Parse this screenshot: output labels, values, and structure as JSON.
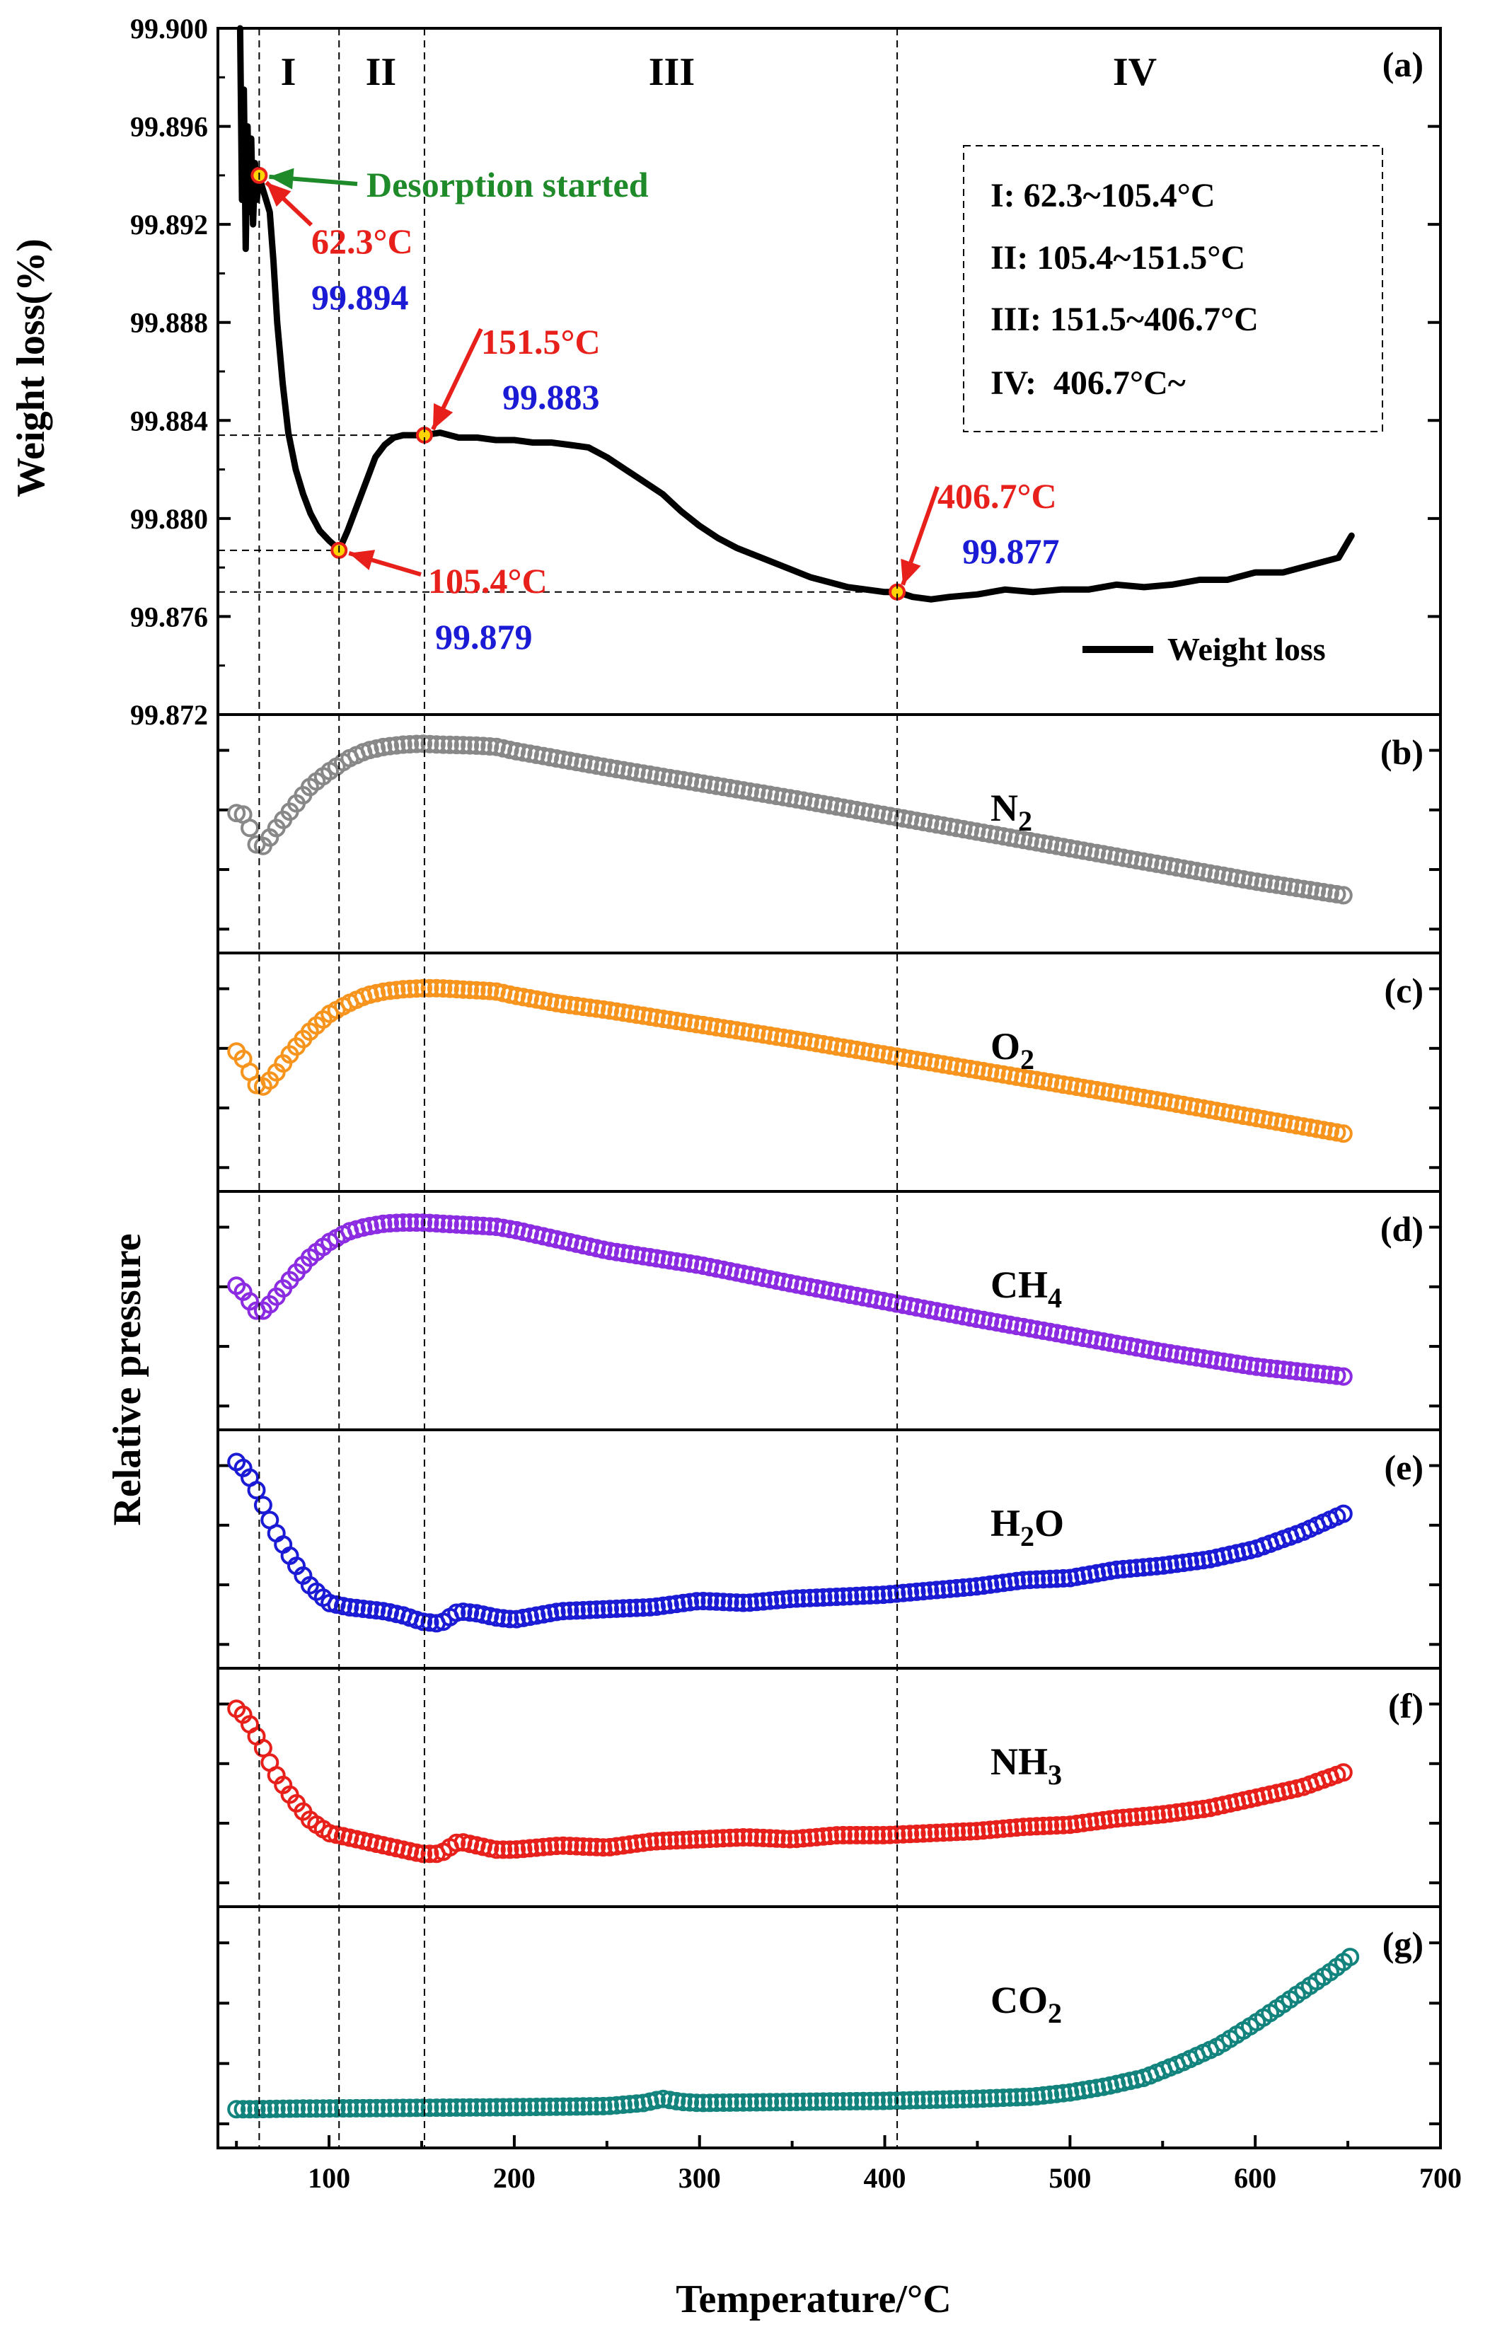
{
  "chart_data": {
    "type": "line",
    "title": "",
    "xlabel": "Temperature/°C",
    "xlim": [
      40,
      700
    ],
    "x_ticks": [
      100,
      200,
      300,
      400,
      500,
      600,
      700
    ],
    "shared_ylabel": "Relative pressure",
    "region_boundaries": [
      62.3,
      105.4,
      151.5,
      406.7
    ],
    "regions": [
      {
        "name": "I",
        "x": 78
      },
      {
        "name": "II",
        "x": 128
      },
      {
        "name": "III",
        "x": 285
      },
      {
        "name": "IV",
        "x": 535
      }
    ],
    "panels": [
      {
        "id": "a",
        "letter": "(a)",
        "ylabel": "Weight loss(%)",
        "ylim": [
          99.872,
          99.9
        ],
        "y_ticks": [
          "99.872",
          "99.876",
          "99.880",
          "99.884",
          "99.888",
          "99.892",
          "99.896",
          "99.900"
        ],
        "series": [
          {
            "name": "Weight loss",
            "color": "#000000",
            "x": [
              52,
              53,
              54,
              55,
              56,
              57,
              58,
              59,
              60,
              61,
              62.3,
              64,
              66,
              68,
              70,
              72,
              75,
              78,
              82,
              86,
              90,
              95,
              100,
              103,
              105.4,
              110,
              115,
              120,
              125,
              130,
              135,
              140,
              145,
              151.5,
              160,
              170,
              180,
              190,
              200,
              210,
              220,
              230,
              240,
              250,
              260,
              270,
              280,
              290,
              300,
              310,
              320,
              330,
              340,
              350,
              360,
              370,
              380,
              390,
              400,
              406.7,
              415,
              425,
              435,
              450,
              465,
              480,
              495,
              510,
              525,
              540,
              555,
              570,
              585,
              600,
              615,
              630,
              645,
              652
            ],
            "y": [
              99.9,
              99.893,
              99.8975,
              99.891,
              99.896,
              99.8925,
              99.8955,
              99.892,
              99.8945,
              99.893,
              99.894,
              99.8935,
              99.893,
              99.8925,
              99.8905,
              99.888,
              99.8855,
              99.8835,
              99.882,
              99.881,
              99.8802,
              99.8795,
              99.8791,
              99.8789,
              99.8787,
              99.8795,
              99.8805,
              99.8815,
              99.8825,
              99.883,
              99.8833,
              99.8834,
              99.8834,
              99.8834,
              99.8835,
              99.8833,
              99.8833,
              99.8832,
              99.8832,
              99.8831,
              99.8831,
              99.883,
              99.8829,
              99.8825,
              99.882,
              99.8815,
              99.881,
              99.8803,
              99.8797,
              99.8792,
              99.8788,
              99.8785,
              99.8782,
              99.8779,
              99.8776,
              99.8774,
              99.8772,
              99.8771,
              99.877,
              99.877,
              99.8768,
              99.8767,
              99.8768,
              99.8769,
              99.8771,
              99.877,
              99.8771,
              99.8771,
              99.8773,
              99.8772,
              99.8773,
              99.8775,
              99.8775,
              99.8778,
              99.8778,
              99.8781,
              99.8784,
              99.8793
            ]
          }
        ],
        "legend": {
          "label": "Weight loss",
          "position": "bottom-right"
        },
        "key_points": [
          {
            "x": 62.3,
            "y": 99.894,
            "temp_label": "62.3°C",
            "value_label": "99.894"
          },
          {
            "x": 105.4,
            "y": 99.8787,
            "temp_label": "105.4°C",
            "value_label": "99.879"
          },
          {
            "x": 151.5,
            "y": 99.8834,
            "temp_label": "151.5°C",
            "value_label": "99.883"
          },
          {
            "x": 406.7,
            "y": 99.877,
            "temp_label": "406.7°C",
            "value_label": "99.877"
          }
        ],
        "annotation": "Desorption started",
        "info_box": [
          "I: 62.3~105.4°C",
          "II: 105.4~151.5°C",
          "III: 151.5~406.7°C",
          "IV:  406.7°C~"
        ]
      },
      {
        "id": "b",
        "letter": "(b)",
        "label": "N2",
        "label_main": "N",
        "label_sub": "2",
        "label_tail": "",
        "color": "#888888",
        "x": [
          50,
          55,
          60,
          65,
          70,
          80,
          90,
          100,
          110,
          120,
          130,
          140,
          150,
          160,
          170,
          180,
          190,
          200,
          225,
          250,
          300,
          350,
          400,
          450,
          500,
          550,
          600,
          650
        ],
        "y": [
          0.6,
          0.59,
          0.45,
          0.44,
          0.51,
          0.62,
          0.73,
          0.8,
          0.86,
          0.9,
          0.92,
          0.93,
          0.935,
          0.93,
          0.928,
          0.925,
          0.92,
          0.9,
          0.86,
          0.82,
          0.745,
          0.67,
          0.59,
          0.51,
          0.43,
          0.35,
          0.27,
          0.2
        ]
      },
      {
        "id": "c",
        "letter": "(c)",
        "label": "O2",
        "label_main": "O",
        "label_sub": "2",
        "label_tail": "",
        "color": "#f7941d",
        "x": [
          50,
          55,
          60,
          65,
          70,
          80,
          90,
          100,
          110,
          120,
          130,
          140,
          150,
          160,
          170,
          180,
          190,
          200,
          225,
          250,
          300,
          350,
          400,
          450,
          500,
          550,
          600,
          650
        ],
        "y": [
          0.6,
          0.55,
          0.44,
          0.43,
          0.48,
          0.6,
          0.7,
          0.78,
          0.83,
          0.87,
          0.89,
          0.9,
          0.905,
          0.905,
          0.9,
          0.895,
          0.89,
          0.87,
          0.83,
          0.8,
          0.73,
          0.66,
          0.585,
          0.51,
          0.435,
          0.36,
          0.28,
          0.2
        ]
      },
      {
        "id": "d",
        "letter": "(d)",
        "label": "CH4",
        "label_main": "CH",
        "label_sub": "4",
        "label_tail": "",
        "color": "#8b2be2",
        "x": [
          50,
          55,
          60,
          65,
          70,
          80,
          90,
          100,
          110,
          120,
          130,
          140,
          150,
          160,
          170,
          180,
          190,
          200,
          225,
          250,
          300,
          350,
          400,
          450,
          500,
          550,
          600,
          650
        ],
        "y": [
          0.62,
          0.58,
          0.5,
          0.5,
          0.55,
          0.66,
          0.76,
          0.83,
          0.88,
          0.905,
          0.92,
          0.925,
          0.925,
          0.92,
          0.915,
          0.91,
          0.905,
          0.89,
          0.84,
          0.79,
          0.72,
          0.63,
          0.545,
          0.46,
          0.38,
          0.3,
          0.23,
          0.18
        ]
      },
      {
        "id": "e",
        "letter": "(e)",
        "label": "H2O",
        "label_main": "H",
        "label_sub": "2",
        "label_tail": "O",
        "color": "#1b1bd6",
        "x": [
          50,
          55,
          60,
          65,
          70,
          80,
          90,
          100,
          110,
          120,
          130,
          140,
          150,
          160,
          170,
          180,
          190,
          200,
          225,
          250,
          275,
          300,
          325,
          350,
          375,
          400,
          425,
          450,
          475,
          500,
          525,
          550,
          575,
          600,
          625,
          650
        ],
        "y": [
          0.92,
          0.88,
          0.8,
          0.7,
          0.6,
          0.45,
          0.32,
          0.24,
          0.22,
          0.21,
          0.2,
          0.18,
          0.15,
          0.14,
          0.2,
          0.19,
          0.17,
          0.16,
          0.2,
          0.21,
          0.22,
          0.25,
          0.24,
          0.26,
          0.27,
          0.28,
          0.3,
          0.32,
          0.35,
          0.36,
          0.4,
          0.42,
          0.45,
          0.5,
          0.58,
          0.68
        ]
      },
      {
        "id": "f",
        "letter": "(f)",
        "label": "NH3",
        "label_main": "NH",
        "label_sub": "3",
        "label_tail": "",
        "color": "#e8201b",
        "x": [
          50,
          55,
          60,
          65,
          70,
          80,
          90,
          100,
          110,
          120,
          130,
          140,
          150,
          160,
          170,
          180,
          190,
          200,
          225,
          250,
          275,
          300,
          325,
          350,
          375,
          400,
          425,
          450,
          475,
          500,
          525,
          550,
          575,
          600,
          625,
          650
        ],
        "y": [
          0.88,
          0.84,
          0.76,
          0.68,
          0.58,
          0.45,
          0.34,
          0.28,
          0.26,
          0.24,
          0.22,
          0.2,
          0.18,
          0.18,
          0.24,
          0.22,
          0.2,
          0.2,
          0.22,
          0.21,
          0.24,
          0.25,
          0.26,
          0.25,
          0.27,
          0.27,
          0.28,
          0.29,
          0.31,
          0.32,
          0.35,
          0.37,
          0.4,
          0.45,
          0.5,
          0.58
        ]
      },
      {
        "id": "g",
        "letter": "(g)",
        "label": "CO2",
        "label_main": "CO",
        "label_sub": "2",
        "label_tail": "",
        "color": "#13847d",
        "x": [
          50,
          60,
          70,
          80,
          100,
          120,
          150,
          200,
          250,
          270,
          280,
          290,
          300,
          350,
          400,
          450,
          480,
          500,
          520,
          540,
          560,
          580,
          600,
          620,
          640,
          652
        ],
        "y": [
          0.11,
          0.11,
          0.112,
          0.113,
          0.114,
          0.115,
          0.117,
          0.12,
          0.125,
          0.14,
          0.16,
          0.145,
          0.14,
          0.145,
          0.15,
          0.16,
          0.17,
          0.19,
          0.22,
          0.26,
          0.33,
          0.41,
          0.52,
          0.64,
          0.76,
          0.84
        ]
      }
    ]
  }
}
